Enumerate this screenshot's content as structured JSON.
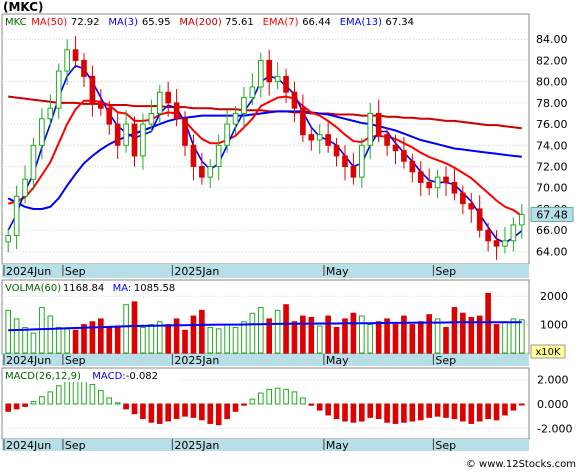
{
  "header": {
    "symbol": "(MKC)"
  },
  "price_panel": {
    "legend": [
      {
        "label": "MKC",
        "color": "#006400"
      },
      {
        "label": "MA(50)",
        "value": "72.92",
        "color": "#ff0000"
      },
      {
        "label": "MA(3)",
        "value": "65.95",
        "color": "#0000ff"
      },
      {
        "label": "MA(200)",
        "value": "75.61",
        "color": "#cc0000"
      },
      {
        "label": "EMA(7)",
        "value": "66.44",
        "color": "#ff0000"
      },
      {
        "label": "EMA(13)",
        "value": "67.34",
        "color": "#0000ff"
      }
    ],
    "last_price_label": "67.48",
    "y_ticks": [
      "84.00",
      "82.00",
      "80.00",
      "78.00",
      "76.00",
      "74.00",
      "72.00",
      "70.00",
      "68.00",
      "66.00",
      "64.00"
    ]
  },
  "volume_panel": {
    "legend": [
      {
        "label": "VOLMA(60)",
        "value": "1168.84",
        "color": "#006400"
      },
      {
        "label": "MA:",
        "value": "1085.58",
        "color": "#0000ff"
      }
    ],
    "y_ticks": [
      "2000",
      "1000"
    ],
    "unit_label": "x10K"
  },
  "macd_panel": {
    "legend": [
      {
        "label": "MACD(26,12,9)",
        "color": "#006400"
      },
      {
        "label": "MACD:",
        "value": "-0.082",
        "color": "#0000ff"
      }
    ],
    "y_ticks": [
      "2.000",
      "0.000",
      "-2.000"
    ]
  },
  "x_axis": {
    "labels": [
      "2024Jun",
      "Sep",
      "2025Jan",
      "May",
      "Sep"
    ]
  },
  "watermark": "© www.12Stocks.com",
  "colors": {
    "up": "#22aa22",
    "down": "#dd0000",
    "ma_red": "#ff0000",
    "ma_blue": "#0000ff",
    "ma200": "#cc0000",
    "axis_bar": "#b8dfe8",
    "grid": "#bbbbbb"
  },
  "chart_data": {
    "type": "candlestick",
    "price": {
      "ylim": [
        63,
        86
      ],
      "close": [
        65.5,
        69.2,
        70.8,
        74,
        76.5,
        77.5,
        81,
        83,
        82,
        80.5,
        78,
        77.5,
        76,
        74,
        76,
        73,
        76,
        77,
        79,
        78,
        76.5,
        74,
        72,
        71,
        72,
        74,
        76,
        77,
        78.5,
        79.5,
        82,
        80,
        80.5,
        79,
        77.5,
        75,
        74.5,
        75,
        74,
        73,
        72,
        71,
        74,
        77,
        75,
        74,
        73.5,
        72.5,
        71.5,
        70.5,
        70,
        71,
        70.5,
        69.5,
        68.5,
        68,
        66,
        65,
        64.5,
        65,
        66.5,
        67.48
      ],
      "ma3": [
        66,
        67.5,
        69.7,
        71.3,
        73.8,
        76,
        78.5,
        80.5,
        81.5,
        81.2,
        80,
        78.5,
        77,
        75.8,
        75.2,
        74.7,
        75,
        75.3,
        77,
        77.8,
        77.5,
        76.2,
        74,
        72.5,
        71.7,
        72.3,
        74,
        75.7,
        77.2,
        78.3,
        80,
        80.5,
        80.3,
        79.6,
        78.8,
        77.1,
        75.7,
        74.8,
        74.5,
        74,
        73,
        72,
        72.3,
        74,
        75.3,
        75.3,
        74.2,
        73.3,
        72.5,
        71.5,
        70.7,
        70.5,
        70.5,
        70.3,
        69.5,
        68.7,
        67.5,
        66.3,
        65.2,
        64.8,
        65.3,
        65.95
      ],
      "ema13": [
        68.5,
        68.7,
        69.1,
        70,
        71.2,
        72.4,
        74.2,
        76,
        77.4,
        78.2,
        78.2,
        78.1,
        77.8,
        77.1,
        77,
        76.3,
        76.3,
        76.4,
        76.9,
        77.1,
        77,
        76.3,
        75.4,
        74.6,
        74.2,
        74.2,
        74.5,
        74.9,
        75.7,
        76.5,
        77.7,
        78.1,
        78.5,
        78.6,
        78.4,
        77.7,
        77.1,
        76.8,
        76.3,
        75.7,
        75,
        74.4,
        74.3,
        74.8,
        74.9,
        74.8,
        74.6,
        74.2,
        73.8,
        73.3,
        72.9,
        72.6,
        72.3,
        71.9,
        71.4,
        70.9,
        70.2,
        69.5,
        68.8,
        68.2,
        67.9,
        67.34
      ],
      "ma50": [
        69,
        68.6,
        68.2,
        68,
        68,
        68.2,
        69,
        70.2,
        71.3,
        72.3,
        73,
        73.6,
        74.1,
        74.5,
        74.8,
        75.1,
        75.4,
        75.7,
        76,
        76.3,
        76.5,
        76.6,
        76.7,
        76.8,
        76.8,
        76.8,
        76.8,
        76.8,
        76.8,
        76.9,
        77,
        77.1,
        77.2,
        77.2,
        77.2,
        77.2,
        77.1,
        77,
        76.9,
        76.7,
        76.5,
        76.3,
        76.1,
        76,
        75.8,
        75.6,
        75.4,
        75.1,
        74.8,
        74.5,
        74.3,
        74.1,
        73.9,
        73.7,
        73.6,
        73.5,
        73.4,
        73.3,
        73.2,
        73.1,
        73,
        72.92
      ],
      "ma200": [
        78.6,
        78.5,
        78.4,
        78.3,
        78.2,
        78.1,
        78,
        78,
        78,
        77.9,
        77.9,
        77.9,
        77.8,
        77.8,
        77.8,
        77.7,
        77.7,
        77.7,
        77.7,
        77.6,
        77.6,
        77.6,
        77.5,
        77.5,
        77.5,
        77.4,
        77.4,
        77.4,
        77.3,
        77.3,
        77.3,
        77.2,
        77.2,
        77.2,
        77.1,
        77.1,
        77,
        77,
        77,
        76.9,
        76.9,
        76.9,
        76.8,
        76.8,
        76.8,
        76.7,
        76.7,
        76.6,
        76.6,
        76.5,
        76.5,
        76.4,
        76.3,
        76.3,
        76.2,
        76.1,
        76,
        75.9,
        75.9,
        75.8,
        75.7,
        75.61
      ]
    },
    "volume": {
      "ylim": [
        0,
        2500
      ],
      "values": [
        1500,
        1200,
        900,
        700,
        1600,
        1300,
        900,
        850,
        800,
        1000,
        1100,
        1200,
        900,
        950,
        1700,
        1800,
        900,
        1000,
        1100,
        1000,
        1200,
        800,
        1300,
        1500,
        900,
        850,
        1000,
        900,
        1100,
        1400,
        1600,
        1200,
        1500,
        1700,
        1100,
        1300,
        1250,
        950,
        1300,
        900,
        1200,
        1400,
        1300,
        1000,
        1100,
        1200,
        1000,
        1300,
        1000,
        1100,
        1350,
        1200,
        900,
        1600,
        1400,
        1250,
        1300,
        2100,
        1000,
        1100,
        1200,
        1168.84
      ],
      "ma": [
        800,
        810,
        820,
        830,
        840,
        850,
        860,
        870,
        880,
        890,
        900,
        910,
        920,
        930,
        940,
        950,
        955,
        960,
        965,
        970,
        975,
        980,
        985,
        990,
        995,
        1000,
        1000,
        1000,
        1005,
        1010,
        1015,
        1020,
        1025,
        1030,
        1030,
        1030,
        1035,
        1040,
        1040,
        1040,
        1045,
        1050,
        1050,
        1050,
        1055,
        1060,
        1060,
        1060,
        1065,
        1070,
        1070,
        1070,
        1075,
        1080,
        1080,
        1080,
        1082,
        1084,
        1085,
        1085,
        1085,
        1085.58
      ]
    },
    "macd": {
      "ylim": [
        -2.8,
        2.8
      ],
      "values": [
        -0.6,
        -0.4,
        -0.2,
        0.2,
        0.6,
        1.0,
        1.5,
        2.0,
        2.1,
        2.0,
        1.6,
        1.1,
        0.5,
        0.1,
        -0.4,
        -0.8,
        -1.2,
        -1.5,
        -1.6,
        -1.4,
        -1.2,
        -1.0,
        -1.1,
        -1.3,
        -1.6,
        -1.7,
        -1.2,
        -0.6,
        -0.1,
        0.4,
        0.9,
        1.2,
        1.3,
        1.2,
        1.0,
        0.5,
        -0.1,
        -0.5,
        -0.9,
        -1.2,
        -1.4,
        -1.5,
        -1.4,
        -1.1,
        -1.2,
        -1.5,
        -1.6,
        -1.5,
        -1.4,
        -1.3,
        -1.1,
        -1.0,
        -1.1,
        -1.2,
        -1.4,
        -1.6,
        -1.4,
        -1.2,
        -1.3,
        -0.9,
        -0.5,
        -0.082
      ]
    },
    "x_labels": [
      {
        "label": "2024Jun",
        "index": 0
      },
      {
        "label": "Sep",
        "index": 7
      },
      {
        "label": "2025Jan",
        "index": 20
      },
      {
        "label": "May",
        "index": 38
      },
      {
        "label": "Sep",
        "index": 51
      }
    ]
  }
}
